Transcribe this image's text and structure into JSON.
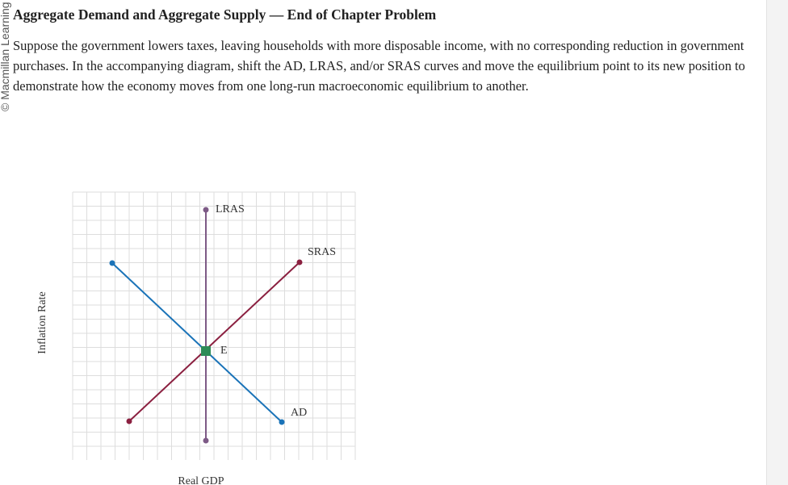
{
  "header": {
    "title": "Aggregate Demand and Aggregate Supply — End of Chapter Problem",
    "copyright": "© Macmillan Learning"
  },
  "problem": {
    "text": "Suppose the government lowers taxes, leaving households with more disposable income, with no corresponding reduction in government purchases. In the accompanying diagram, shift the AD, LRAS, and/or SRAS curves and move the equilibrium point to its new position to demonstrate how the economy moves from one long-run macroeconomic equilibrium to another."
  },
  "diagram": {
    "y_axis_label": "Inflation Rate",
    "x_axis_label": "Real GDP",
    "curves": [
      {
        "label": "LRAS"
      },
      {
        "label": "SRAS"
      },
      {
        "label": "AD"
      }
    ],
    "equilibrium_label": "E"
  }
}
